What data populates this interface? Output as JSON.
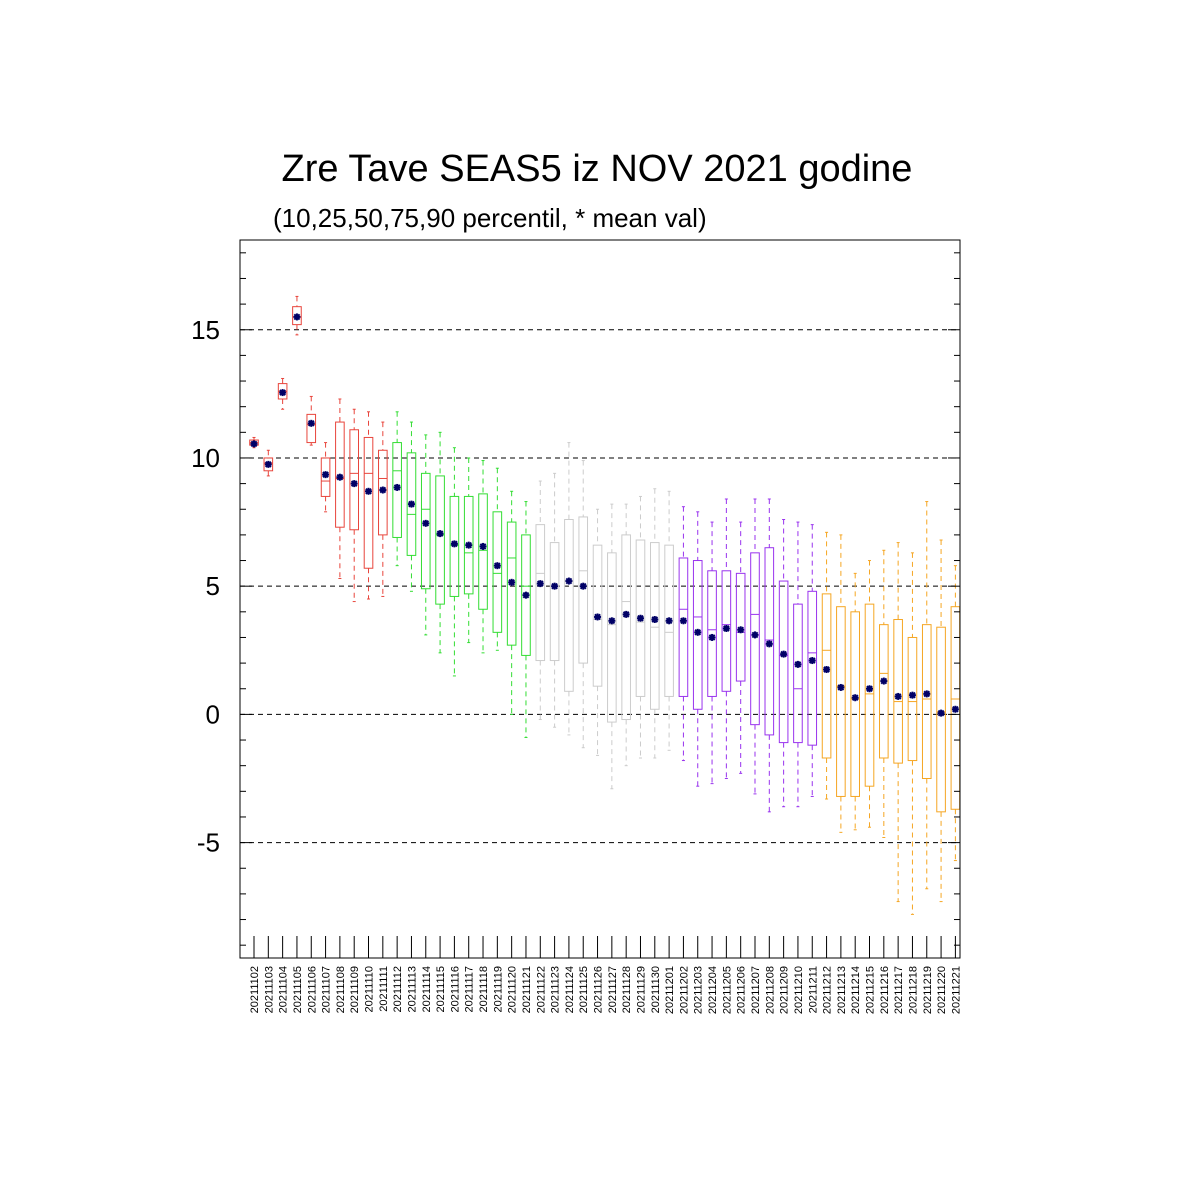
{
  "chart_data": {
    "type": "box",
    "title": "Zre Tave SEAS5 iz NOV 2021 godine",
    "subtitle": "(10,25,50,75,90 percentil, * mean val)",
    "ylim": [
      -9.5,
      18.5
    ],
    "yticks": [
      -5,
      0,
      5,
      10,
      15
    ],
    "ytick_labels": [
      "-5",
      "0",
      "5",
      "10",
      "15"
    ],
    "grid": "dashed horizontal at major y ticks",
    "colors": {
      "red": "#e8453c",
      "green": "#33dd33",
      "lightgray": "#cccccc",
      "purple": "#9933ee",
      "orange": "#f5a623",
      "mean_marker": "#000066",
      "grid": "#000000"
    },
    "categories": [
      "20211102",
      "20211103",
      "20211104",
      "20211105",
      "20211106",
      "20211107",
      "20211108",
      "20211109",
      "20211110",
      "20211111",
      "20211112",
      "20211113",
      "20211114",
      "20211115",
      "20211116",
      "20211117",
      "20211118",
      "20211119",
      "20211120",
      "20211121",
      "20211122",
      "20211123",
      "20211124",
      "20211125",
      "20211126",
      "20211127",
      "20211128",
      "20211129",
      "20211130",
      "20211201",
      "20211202",
      "20211203",
      "20211204",
      "20211205",
      "20211206",
      "20211207",
      "20211208",
      "20211209",
      "20211210",
      "20211211",
      "20211212",
      "20211213",
      "20211214",
      "20211215",
      "20211216",
      "20211217",
      "20211218",
      "20211219",
      "20211220",
      "20211221"
    ],
    "series": [
      {
        "date": "20211102",
        "color": "red",
        "p10": 10.4,
        "p25": 10.5,
        "p50": 10.6,
        "p75": 10.7,
        "p90": 10.8,
        "mean": 10.55
      },
      {
        "date": "20211103",
        "color": "red",
        "p10": 9.3,
        "p25": 9.5,
        "p50": 9.8,
        "p75": 10.0,
        "p90": 10.3,
        "mean": 9.75
      },
      {
        "date": "20211104",
        "color": "red",
        "p10": 11.9,
        "p25": 12.3,
        "p50": 12.6,
        "p75": 12.9,
        "p90": 13.1,
        "mean": 12.55
      },
      {
        "date": "20211105",
        "color": "red",
        "p10": 14.8,
        "p25": 15.2,
        "p50": 15.5,
        "p75": 15.9,
        "p90": 16.3,
        "mean": 15.5
      },
      {
        "date": "20211106",
        "color": "red",
        "p10": 10.5,
        "p25": 10.6,
        "p50": 11.3,
        "p75": 11.7,
        "p90": 12.4,
        "mean": 11.35
      },
      {
        "date": "20211107",
        "color": "red",
        "p10": 7.9,
        "p25": 8.5,
        "p50": 9.1,
        "p75": 10.0,
        "p90": 10.6,
        "mean": 9.35
      },
      {
        "date": "20211108",
        "color": "red",
        "p10": 5.3,
        "p25": 7.3,
        "p50": 9.2,
        "p75": 11.4,
        "p90": 12.3,
        "mean": 9.25
      },
      {
        "date": "20211109",
        "color": "red",
        "p10": 4.4,
        "p25": 7.2,
        "p50": 9.4,
        "p75": 11.1,
        "p90": 11.9,
        "mean": 9.0
      },
      {
        "date": "20211110",
        "color": "red",
        "p10": 4.5,
        "p25": 5.7,
        "p50": 9.4,
        "p75": 10.8,
        "p90": 11.8,
        "mean": 8.7
      },
      {
        "date": "20211111",
        "color": "red",
        "p10": 4.6,
        "p25": 7.0,
        "p50": 9.2,
        "p75": 10.3,
        "p90": 11.4,
        "mean": 8.75
      },
      {
        "date": "20211112",
        "color": "green",
        "p10": 5.8,
        "p25": 6.9,
        "p50": 9.5,
        "p75": 10.6,
        "p90": 11.8,
        "mean": 8.85
      },
      {
        "date": "20211113",
        "color": "green",
        "p10": 4.8,
        "p25": 6.2,
        "p50": 7.8,
        "p75": 10.2,
        "p90": 11.4,
        "mean": 8.2
      },
      {
        "date": "20211114",
        "color": "green",
        "p10": 3.1,
        "p25": 4.9,
        "p50": 8.0,
        "p75": 9.4,
        "p90": 10.9,
        "mean": 7.45
      },
      {
        "date": "20211115",
        "color": "green",
        "p10": 2.4,
        "p25": 4.3,
        "p50": 7.0,
        "p75": 9.3,
        "p90": 11.0,
        "mean": 7.05
      },
      {
        "date": "20211116",
        "color": "green",
        "p10": 1.5,
        "p25": 4.6,
        "p50": 6.6,
        "p75": 8.5,
        "p90": 10.4,
        "mean": 6.65
      },
      {
        "date": "20211117",
        "color": "green",
        "p10": 2.8,
        "p25": 4.7,
        "p50": 6.3,
        "p75": 8.5,
        "p90": 10.0,
        "mean": 6.6
      },
      {
        "date": "20211118",
        "color": "green",
        "p10": 2.4,
        "p25": 4.1,
        "p50": 6.4,
        "p75": 8.6,
        "p90": 9.9,
        "mean": 6.55
      },
      {
        "date": "20211119",
        "color": "green",
        "p10": 2.5,
        "p25": 3.2,
        "p50": 5.5,
        "p75": 7.9,
        "p90": 9.6,
        "mean": 5.8
      },
      {
        "date": "20211120",
        "color": "green",
        "p10": 0.0,
        "p25": 2.7,
        "p50": 6.1,
        "p75": 7.5,
        "p90": 8.7,
        "mean": 5.15
      },
      {
        "date": "20211121",
        "color": "green",
        "p10": -0.9,
        "p25": 2.3,
        "p50": 5.0,
        "p75": 7.0,
        "p90": 8.3,
        "mean": 4.65
      },
      {
        "date": "20211122",
        "color": "lightgray",
        "p10": -0.2,
        "p25": 2.1,
        "p50": 5.5,
        "p75": 7.4,
        "p90": 9.1,
        "mean": 5.1
      },
      {
        "date": "20211123",
        "color": "lightgray",
        "p10": -0.5,
        "p25": 2.1,
        "p50": 5.0,
        "p75": 6.7,
        "p90": 9.4,
        "mean": 5.0
      },
      {
        "date": "20211124",
        "color": "lightgray",
        "p10": -0.8,
        "p25": 0.9,
        "p50": 5.2,
        "p75": 7.6,
        "p90": 10.6,
        "mean": 5.2
      },
      {
        "date": "20211125",
        "color": "lightgray",
        "p10": -1.3,
        "p25": 2.0,
        "p50": 5.6,
        "p75": 7.7,
        "p90": 9.9,
        "mean": 5.0
      },
      {
        "date": "20211126",
        "color": "lightgray",
        "p10": -1.6,
        "p25": 1.1,
        "p50": 3.7,
        "p75": 6.6,
        "p90": 8.0,
        "mean": 3.8
      },
      {
        "date": "20211127",
        "color": "lightgray",
        "p10": -2.9,
        "p25": -0.3,
        "p50": 3.5,
        "p75": 6.3,
        "p90": 8.2,
        "mean": 3.65
      },
      {
        "date": "20211128",
        "color": "lightgray",
        "p10": -2.0,
        "p25": -0.2,
        "p50": 4.4,
        "p75": 7.0,
        "p90": 8.2,
        "mean": 3.9
      },
      {
        "date": "20211129",
        "color": "lightgray",
        "p10": -1.7,
        "p25": 0.7,
        "p50": 3.6,
        "p75": 6.8,
        "p90": 8.5,
        "mean": 3.75
      },
      {
        "date": "20211130",
        "color": "lightgray",
        "p10": -1.7,
        "p25": 0.2,
        "p50": 3.4,
        "p75": 6.7,
        "p90": 8.8,
        "mean": 3.7
      },
      {
        "date": "20211201",
        "color": "lightgray",
        "p10": -1.4,
        "p25": 0.7,
        "p50": 3.2,
        "p75": 6.6,
        "p90": 8.7,
        "mean": 3.65
      },
      {
        "date": "20211202",
        "color": "purple",
        "p10": -1.8,
        "p25": 0.7,
        "p50": 4.1,
        "p75": 6.1,
        "p90": 8.1,
        "mean": 3.65
      },
      {
        "date": "20211203",
        "color": "purple",
        "p10": -2.8,
        "p25": 0.2,
        "p50": 3.8,
        "p75": 6.0,
        "p90": 7.9,
        "mean": 3.2
      },
      {
        "date": "20211204",
        "color": "purple",
        "p10": -2.7,
        "p25": 0.7,
        "p50": 3.3,
        "p75": 5.6,
        "p90": 7.5,
        "mean": 3.0
      },
      {
        "date": "20211205",
        "color": "purple",
        "p10": -2.5,
        "p25": 0.9,
        "p50": 3.5,
        "p75": 5.6,
        "p90": 8.4,
        "mean": 3.35
      },
      {
        "date": "20211206",
        "color": "purple",
        "p10": -2.3,
        "p25": 1.3,
        "p50": 3.2,
        "p75": 5.5,
        "p90": 7.5,
        "mean": 3.3
      },
      {
        "date": "20211207",
        "color": "purple",
        "p10": -3.1,
        "p25": -0.4,
        "p50": 3.9,
        "p75": 6.3,
        "p90": 8.4,
        "mean": 3.1
      },
      {
        "date": "20211208",
        "color": "purple",
        "p10": -3.8,
        "p25": -0.8,
        "p50": 2.9,
        "p75": 6.5,
        "p90": 8.4,
        "mean": 2.75
      },
      {
        "date": "20211209",
        "color": "purple",
        "p10": -3.6,
        "p25": -1.1,
        "p50": 2.3,
        "p75": 5.2,
        "p90": 7.6,
        "mean": 2.35
      },
      {
        "date": "20211210",
        "color": "purple",
        "p10": -3.6,
        "p25": -1.1,
        "p50": 1.0,
        "p75": 4.3,
        "p90": 7.5,
        "mean": 1.95
      },
      {
        "date": "20211211",
        "color": "purple",
        "p10": -3.2,
        "p25": -1.2,
        "p50": 2.4,
        "p75": 4.8,
        "p90": 7.4,
        "mean": 2.1
      },
      {
        "date": "20211212",
        "color": "orange",
        "p10": -3.3,
        "p25": -1.7,
        "p50": 2.5,
        "p75": 4.7,
        "p90": 7.1,
        "mean": 1.75
      },
      {
        "date": "20211213",
        "color": "orange",
        "p10": -4.6,
        "p25": -3.2,
        "p50": 1.1,
        "p75": 4.2,
        "p90": 7.0,
        "mean": 1.05
      },
      {
        "date": "20211214",
        "color": "orange",
        "p10": -4.5,
        "p25": -3.2,
        "p50": 0.6,
        "p75": 4.0,
        "p90": 5.5,
        "mean": 0.65
      },
      {
        "date": "20211215",
        "color": "orange",
        "p10": -4.4,
        "p25": -2.8,
        "p50": 0.8,
        "p75": 4.3,
        "p90": 6.0,
        "mean": 1.0
      },
      {
        "date": "20211216",
        "color": "orange",
        "p10": -4.8,
        "p25": -1.7,
        "p50": 1.6,
        "p75": 3.5,
        "p90": 6.4,
        "mean": 1.3
      },
      {
        "date": "20211217",
        "color": "orange",
        "p10": -7.3,
        "p25": -1.9,
        "p50": 0.5,
        "p75": 3.7,
        "p90": 6.7,
        "mean": 0.7
      },
      {
        "date": "20211218",
        "color": "orange",
        "p10": -7.8,
        "p25": -1.8,
        "p50": 0.5,
        "p75": 3.0,
        "p90": 6.3,
        "mean": 0.75
      },
      {
        "date": "20211219",
        "color": "orange",
        "p10": -6.8,
        "p25": -2.5,
        "p50": 0.6,
        "p75": 3.5,
        "p90": 8.3,
        "mean": 0.8
      },
      {
        "date": "20211220",
        "color": "orange",
        "p10": -7.3,
        "p25": -3.8,
        "p50": 0.1,
        "p75": 3.4,
        "p90": 6.8,
        "mean": 0.05
      },
      {
        "date": "20211221",
        "color": "orange",
        "p10": -5.7,
        "p25": -3.7,
        "p50": 0.6,
        "p75": 4.2,
        "p90": 5.8,
        "mean": 0.2
      }
    ]
  }
}
